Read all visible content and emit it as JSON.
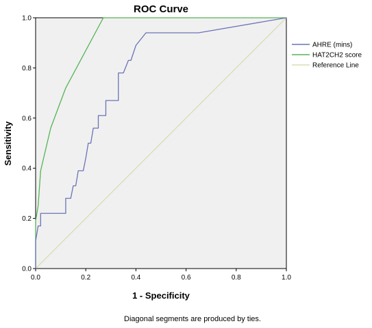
{
  "chart_data": {
    "type": "line",
    "title": "ROC Curve",
    "xlabel": "1 - Specificity",
    "ylabel": "Sensitivity",
    "xlim": [
      0.0,
      1.0
    ],
    "ylim": [
      0.0,
      1.0
    ],
    "x_ticks": [
      "0.0",
      "0.2",
      "0.4",
      "0.6",
      "0.8",
      "1.0"
    ],
    "y_ticks": [
      "0.0",
      "0.2",
      "0.4",
      "0.6",
      "0.8",
      "1.0"
    ],
    "grid": false,
    "legend_position": "right",
    "footnote": "Diagonal segments are produced by ties.",
    "plot_background": "#f0f0f0",
    "series": [
      {
        "name": "AHRE (mins)",
        "color": "#6a73b6",
        "points": [
          [
            0.0,
            0.0
          ],
          [
            0.0,
            0.11
          ],
          [
            0.01,
            0.17
          ],
          [
            0.02,
            0.17
          ],
          [
            0.02,
            0.22
          ],
          [
            0.12,
            0.22
          ],
          [
            0.12,
            0.28
          ],
          [
            0.14,
            0.28
          ],
          [
            0.15,
            0.33
          ],
          [
            0.16,
            0.33
          ],
          [
            0.17,
            0.39
          ],
          [
            0.19,
            0.39
          ],
          [
            0.2,
            0.44
          ],
          [
            0.21,
            0.5
          ],
          [
            0.22,
            0.5
          ],
          [
            0.23,
            0.56
          ],
          [
            0.25,
            0.56
          ],
          [
            0.25,
            0.61
          ],
          [
            0.28,
            0.61
          ],
          [
            0.28,
            0.67
          ],
          [
            0.33,
            0.67
          ],
          [
            0.33,
            0.78
          ],
          [
            0.35,
            0.78
          ],
          [
            0.37,
            0.83
          ],
          [
            0.38,
            0.83
          ],
          [
            0.4,
            0.89
          ],
          [
            0.44,
            0.94
          ],
          [
            0.65,
            0.94
          ],
          [
            1.0,
            1.0
          ]
        ]
      },
      {
        "name": "HAT2CH2 score",
        "color": "#55b355",
        "points": [
          [
            0.0,
            0.0
          ],
          [
            0.0,
            0.19
          ],
          [
            0.01,
            0.25
          ],
          [
            0.02,
            0.39
          ],
          [
            0.06,
            0.56
          ],
          [
            0.12,
            0.72
          ],
          [
            0.27,
            1.0
          ],
          [
            1.0,
            1.0
          ]
        ]
      },
      {
        "name": "Reference Line",
        "color": "#d8ddb4",
        "points": [
          [
            0.0,
            0.0
          ],
          [
            1.0,
            1.0
          ]
        ]
      }
    ]
  }
}
